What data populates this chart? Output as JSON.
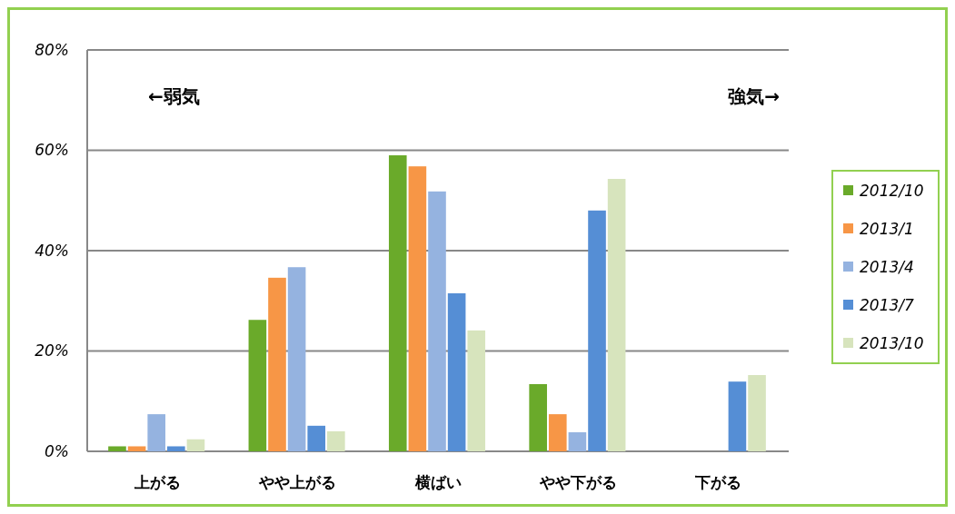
{
  "chart_data": {
    "type": "bar",
    "categories": [
      "上がる",
      "やや上がる",
      "横ばい",
      "やや下がる",
      "下がる"
    ],
    "series": [
      {
        "name": "2012/10",
        "color": "#6aaa2a",
        "values": [
          1,
          26.2,
          59,
          13.4,
          0
        ]
      },
      {
        "name": "2013/1",
        "color": "#f79646",
        "values": [
          1,
          34.6,
          56.8,
          7.4,
          0
        ]
      },
      {
        "name": "2013/4",
        "color": "#95b3e0",
        "values": [
          7.4,
          36.7,
          51.8,
          3.8,
          0
        ]
      },
      {
        "name": "2013/7",
        "color": "#558ed5",
        "values": [
          1,
          5.1,
          31.5,
          48,
          13.9
        ]
      },
      {
        "name": "2013/10",
        "color": "#d7e4bd",
        "values": [
          2.4,
          4,
          24.1,
          54.3,
          15.2
        ]
      }
    ],
    "ylim": [
      0,
      80
    ],
    "yticks": [
      {
        "value": 0,
        "label": "0%"
      },
      {
        "value": 20,
        "label": "20%"
      },
      {
        "value": 40,
        "label": "40%"
      },
      {
        "value": 60,
        "label": "60%"
      },
      {
        "value": 80,
        "label": "80%"
      }
    ],
    "grid": "y",
    "legend": "right",
    "annotations": [
      "←弱気",
      "強気→"
    ]
  }
}
